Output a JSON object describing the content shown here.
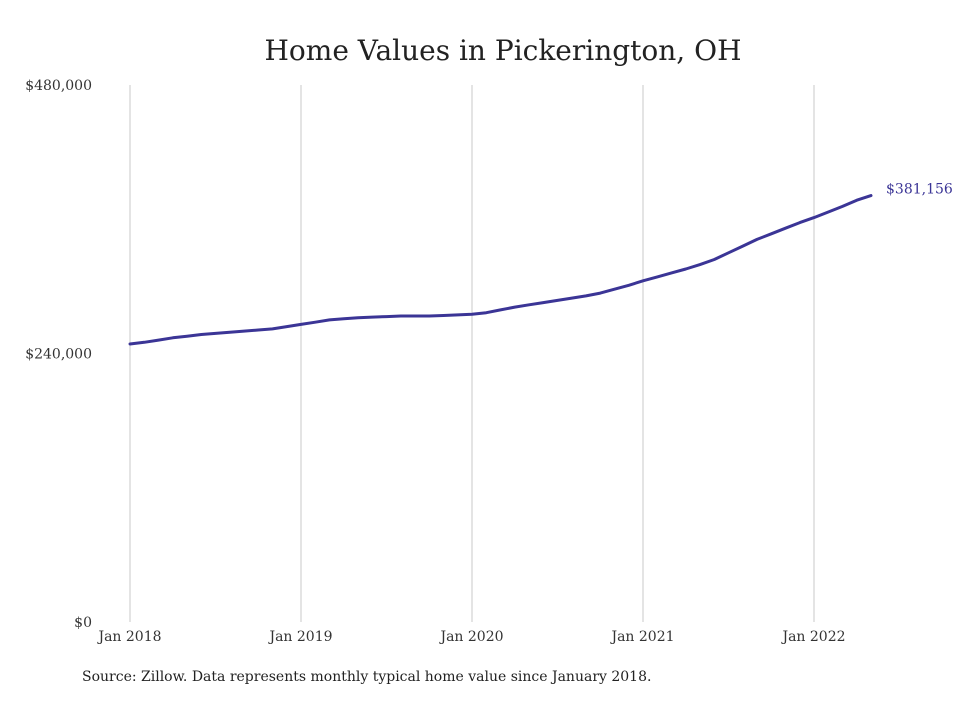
{
  "chart_data": {
    "type": "line",
    "title": "Home Values in Pickerington, OH",
    "source": "Source: Zillow. Data represents monthly typical home value since January 2018.",
    "xlabel": "",
    "ylabel": "",
    "ylim": [
      0,
      480000
    ],
    "y_ticks": [
      {
        "value": 0,
        "label": "$0"
      },
      {
        "value": 240000,
        "label": "$240,000"
      },
      {
        "value": 480000,
        "label": "$480,000"
      }
    ],
    "x_ticks": [
      {
        "value": "2018-01",
        "label": "Jan 2018"
      },
      {
        "value": "2019-01",
        "label": "Jan 2019"
      },
      {
        "value": "2020-01",
        "label": "Jan 2020"
      },
      {
        "value": "2021-01",
        "label": "Jan 2021"
      },
      {
        "value": "2022-01",
        "label": "Jan 2022"
      }
    ],
    "grid": {
      "vertical": true,
      "horizontal": false
    },
    "line_color": "#3b3596",
    "end_label": "$381,156",
    "series": [
      {
        "x": [
          "2018-01",
          "2018-02",
          "2018-03",
          "2018-04",
          "2018-05",
          "2018-06",
          "2018-07",
          "2018-08",
          "2018-09",
          "2018-10",
          "2018-11",
          "2018-12",
          "2019-01",
          "2019-02",
          "2019-03",
          "2019-04",
          "2019-05",
          "2019-06",
          "2019-07",
          "2019-08",
          "2019-09",
          "2019-10",
          "2019-11",
          "2019-12",
          "2020-01",
          "2020-02",
          "2020-03",
          "2020-04",
          "2020-05",
          "2020-06",
          "2020-07",
          "2020-08",
          "2020-09",
          "2020-10",
          "2020-11",
          "2020-12",
          "2021-01",
          "2021-02",
          "2021-03",
          "2021-04",
          "2021-05",
          "2021-06",
          "2021-07",
          "2021-08",
          "2021-09",
          "2021-10",
          "2021-11",
          "2021-12",
          "2022-01",
          "2022-02",
          "2022-03",
          "2022-04",
          "2022-05"
        ],
        "values": [
          248500,
          250000,
          252000,
          254000,
          255500,
          257000,
          258000,
          259000,
          260000,
          261000,
          262000,
          264000,
          266000,
          268000,
          270000,
          271000,
          272000,
          272500,
          273000,
          273500,
          273500,
          273500,
          274000,
          274500,
          275000,
          276500,
          279000,
          281500,
          283500,
          285500,
          287500,
          289500,
          291500,
          294000,
          297500,
          301000,
          305000,
          308500,
          312000,
          315500,
          319500,
          324000,
          330000,
          336000,
          342000,
          347000,
          352000,
          357000,
          361500,
          366500,
          371500,
          377000,
          381156
        ]
      }
    ]
  }
}
